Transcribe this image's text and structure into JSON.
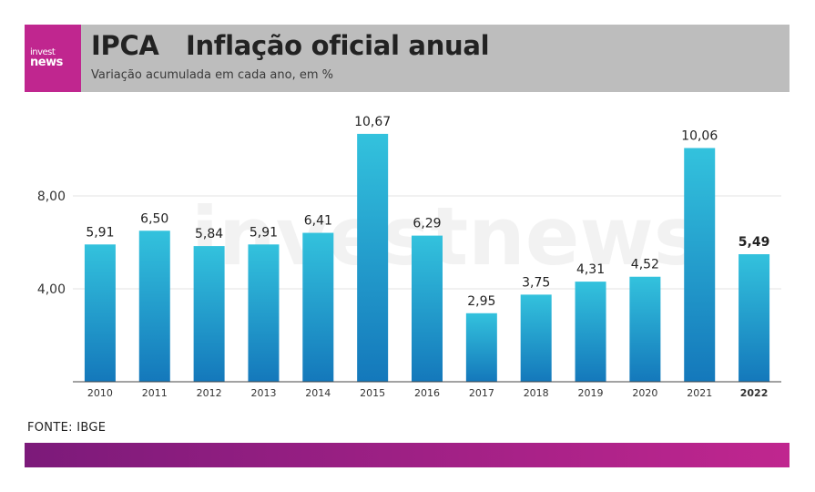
{
  "header": {
    "logo_top": "invest",
    "logo_bottom": "news",
    "title": "IPCA   Inflação oficial anual",
    "subtitle": "Variação acumulada em cada ano, em %"
  },
  "watermark": "investnews",
  "source": "FONTE: IBGE",
  "colors": {
    "bar_top": "#33c2dd",
    "bar_bottom": "#1478bb",
    "header_bg": "#bdbdbd",
    "brand": "#c0268f",
    "footer_start": "#7c1a7a",
    "footer_end": "#c0268f"
  },
  "chart_data": {
    "type": "bar",
    "categories": [
      "2010",
      "2011",
      "2012",
      "2013",
      "2014",
      "2015",
      "2016",
      "2017",
      "2018",
      "2019",
      "2020",
      "2021",
      "2022"
    ],
    "values": [
      5.91,
      6.5,
      5.84,
      5.91,
      6.41,
      10.67,
      6.29,
      2.95,
      3.75,
      4.31,
      4.52,
      10.06,
      5.49
    ],
    "value_labels": [
      "5,91",
      "6,50",
      "5,84",
      "5,91",
      "6,41",
      "10,67",
      "6,29",
      "2,95",
      "3,75",
      "4,31",
      "4,52",
      "10,06",
      "5,49"
    ],
    "highlight_category": "2022",
    "y_ticks": [
      4,
      8
    ],
    "y_tick_labels": [
      "4,00",
      "8,00"
    ],
    "ylim": [
      0,
      12
    ],
    "grid": true,
    "xlabel": "",
    "ylabel": ""
  }
}
